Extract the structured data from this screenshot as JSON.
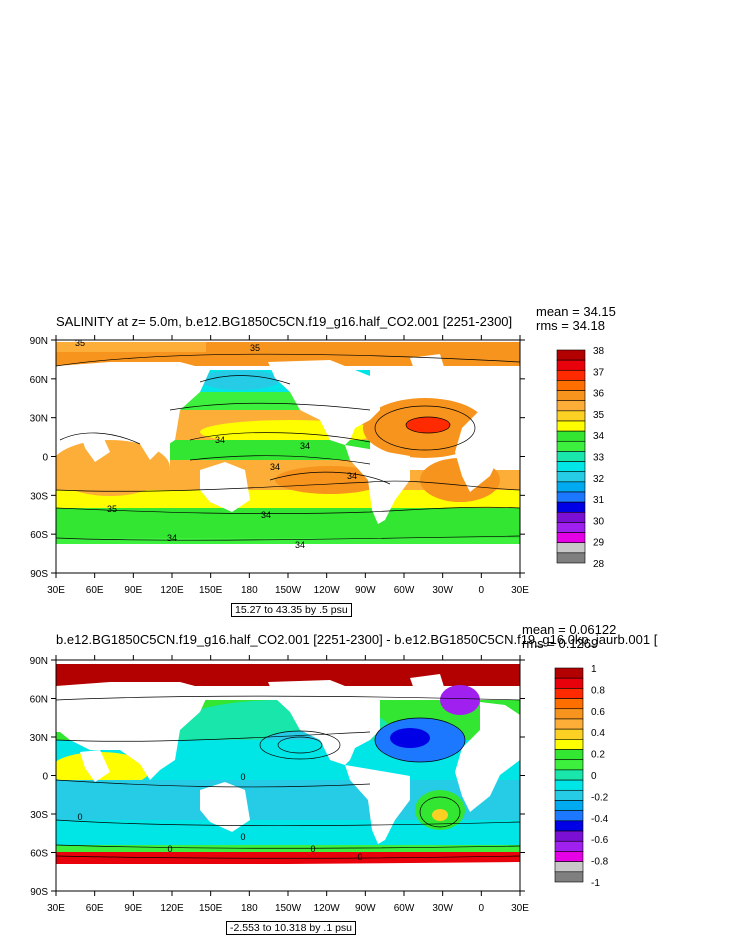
{
  "top": {
    "title": "SALINITY at z=   5.0m, b.e12.BG1850C5CN.f19_g16.half_CO2.001 [2251-2300]",
    "mean": "mean = 34.15",
    "rms": "rms = 34.18",
    "caption": "15.27 to 43.35 by .5 psu",
    "lat_ticks": [
      "90N",
      "60N",
      "30N",
      "0",
      "30S",
      "60S",
      "90S"
    ],
    "lon_ticks": [
      "30E",
      "60E",
      "90E",
      "120E",
      "150E",
      "180",
      "150W",
      "120W",
      "90W",
      "60W",
      "30W",
      "0",
      "30E"
    ],
    "colorbar": {
      "labels": [
        "38",
        "37",
        "36",
        "35",
        "34",
        "33",
        "32",
        "31",
        "30",
        "29",
        "28"
      ],
      "colors": [
        "#b30000",
        "#e8000a",
        "#ff2a00",
        "#ff6f00",
        "#f7941d",
        "#fcae38",
        "#fdd024",
        "#fefe00",
        "#32e632",
        "#3df03d",
        "#18e6aa",
        "#00e6e6",
        "#26cce6",
        "#00aaf0",
        "#1c78ff",
        "#0000e6",
        "#7b10d4",
        "#a020f0",
        "#e600e6",
        "#c8c8c8",
        "#7f7f7f"
      ],
      "contour_labels": [
        "35",
        "35",
        "34",
        "34",
        "34",
        "34",
        "35",
        "34",
        "34",
        "34"
      ]
    }
  },
  "bottom": {
    "title": "b.e12.BG1850C5CN.f19_g16.half_CO2.001 [2251-2300] - b.e12.BG1850C5CN.f19_g16.0kp_iaurb.001 [",
    "mean": "mean = 0.06122",
    "rms": "rms = 0.1269",
    "caption": "-2.553 to 10.318 by .1 psu",
    "lat_ticks": [
      "90N",
      "60N",
      "30N",
      "0",
      "30S",
      "60S",
      "90S"
    ],
    "lon_ticks": [
      "30E",
      "60E",
      "90E",
      "120E",
      "150E",
      "180",
      "150W",
      "120W",
      "90W",
      "60W",
      "30W",
      "0",
      "30E"
    ],
    "colorbar": {
      "labels": [
        "1",
        "0.8",
        "0.6",
        "0.4",
        "0.2",
        "0",
        "-0.2",
        "-0.4",
        "-0.6",
        "-0.8",
        "-1"
      ],
      "colors": [
        "#b30000",
        "#e8000a",
        "#ff2a00",
        "#ff6f00",
        "#f7941d",
        "#fcae38",
        "#fdd024",
        "#fefe00",
        "#32e632",
        "#3df03d",
        "#18e6aa",
        "#00e6e6",
        "#26cce6",
        "#00aaf0",
        "#1c78ff",
        "#0000e6",
        "#7b10d4",
        "#a020f0",
        "#e600e6",
        "#c8c8c8",
        "#7f7f7f"
      ],
      "contour_labels": [
        "0",
        "0",
        "0",
        "0",
        "0",
        "0"
      ]
    }
  }
}
